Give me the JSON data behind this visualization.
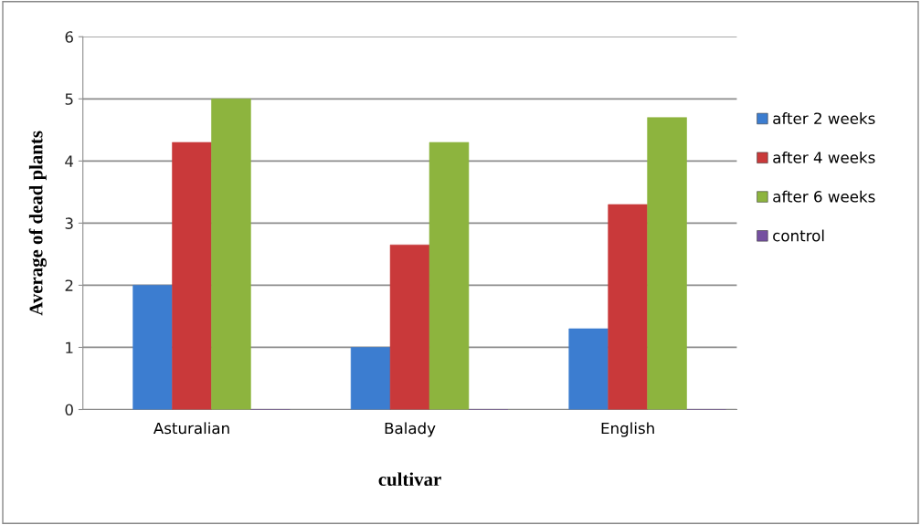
{
  "chart_data": {
    "type": "bar",
    "xlabel": "cultivar",
    "ylabel": "Average of dead plants",
    "categories": [
      "Asturalian",
      "Balady",
      "English"
    ],
    "series": [
      {
        "name": "after 2 weeks",
        "color": "#3c7dd0",
        "values": [
          2,
          1,
          1.3
        ]
      },
      {
        "name": "after 4 weeks",
        "color": "#c9393a",
        "values": [
          4.3,
          2.65,
          3.3
        ]
      },
      {
        "name": "after 6 weeks",
        "color": "#8db43e",
        "values": [
          5,
          4.3,
          4.7
        ]
      },
      {
        "name": "control",
        "color": "#7550a0",
        "values": [
          0,
          0,
          0
        ]
      }
    ],
    "ylim": [
      0,
      6
    ],
    "yticks": [
      0,
      1,
      2,
      3,
      4,
      5,
      6
    ],
    "grid": "y",
    "legend": "right"
  }
}
